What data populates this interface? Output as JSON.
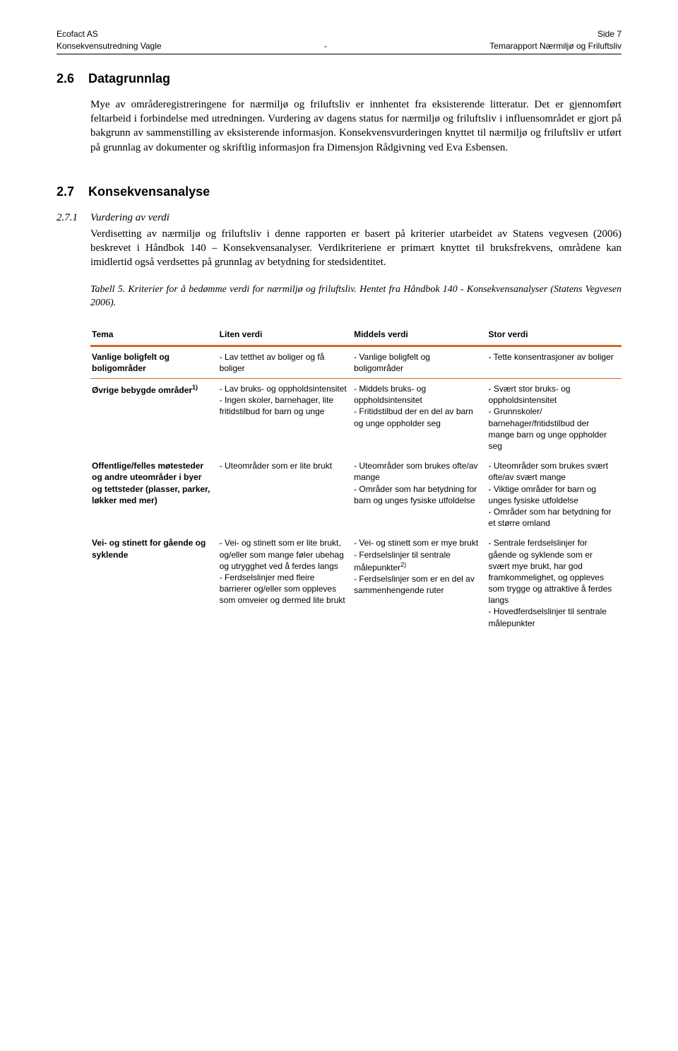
{
  "header": {
    "left1": "Ecofact AS",
    "left2": "Konsekvensutredning Vagle",
    "center": "-",
    "right1": "Side 7",
    "right2": "Temarapport Nærmiljø og Friluftsliv"
  },
  "section26": {
    "num": "2.6",
    "title": "Datagrunnlag",
    "body": "Mye av områderegistreringene for nærmiljø og friluftsliv er innhentet fra eksisterende litteratur. Det er gjennomført feltarbeid i forbindelse med utredningen. Vurdering av dagens status for nærmiljø og friluftsliv i influensområdet er gjort på bakgrunn av sammenstilling av eksisterende informasjon. Konsekvensvurderingen knyttet til nærmiljø og friluftsliv er utført på grunnlag av dokumenter og skriftlig informasjon fra Dimensjon Rådgivning ved Eva Esbensen."
  },
  "section27": {
    "num": "2.7",
    "title": "Konsekvensanalyse",
    "sub_num": "2.7.1",
    "sub_title": "Vurdering av verdi",
    "sub_body": "Verdisetting av nærmiljø og friluftsliv i denne rapporten er basert på kriterier utarbeidet av Statens vegvesen (2006) beskrevet i Håndbok 140 – Konsekvensanalyser. Verdikriteriene er primært knyttet til bruksfrekvens, områdene kan imidlertid også verdsettes på grunnlag av betydning for stedsidentitet."
  },
  "table_caption": "Tabell 5. Kriterier for å bedømme verdi for nærmiljø og friluftsliv. Hentet fra Håndbok 140 - Konsekvensanalyser (Statens Vegvesen 2006).",
  "table": {
    "headers": [
      "Tema",
      "Liten verdi",
      "Middels verdi",
      "Stor verdi"
    ],
    "rows": [
      {
        "tema": "Vanlige boligfelt og boligområder",
        "liten": "- Lav tetthet av boliger og få boliger",
        "middels": "- Vanlige boligfelt og boligområder",
        "stor": "- Tette konsentrasjoner av boliger"
      },
      {
        "tema_html": "Øvrige bebygde områder<sup>1)</sup>",
        "liten": "- Lav bruks- og oppholdsintensitet\n- Ingen skoler, barnehager, lite fritidstilbud for barn og unge",
        "middels": "- Middels bruks- og oppholdsintensitet\n- Fritidstilbud der en del av barn og unge oppholder seg",
        "stor": "- Svært stor bruks- og oppholdsintensitet\n- Grunnskoler/ barnehager/fritidstilbud der mange barn og unge oppholder seg"
      },
      {
        "tema": "Offentlige/felles møtesteder og andre uteområder i byer og tettsteder (plasser, parker, løkker med mer)",
        "liten": "- Uteområder som er lite brukt",
        "middels": "- Uteområder som brukes ofte/av mange\n- Områder som har betydning for barn og unges fysiske utfoldelse",
        "stor": "- Uteområder som brukes svært ofte/av svært mange\n- Viktige områder for barn og unges fysiske utfoldelse\n- Områder som har betydning for et større omland"
      },
      {
        "tema": "Vei- og stinett for gående og syklende",
        "liten": "- Vei- og stinett som er lite brukt, og/eller som mange føler ubehag og utrygghet ved å ferdes langs\n- Ferdselslinjer med fleire barrierer og/eller som oppleves som omveier og dermed lite brukt",
        "middels_html": "- Vei- og stinett som er mye brukt\n- Ferdselslinjer til sentrale målepunkter<sup>2)</sup>\n- Ferdselslinjer som er en del av sammenhengende ruter",
        "stor": "- Sentrale ferdselslinjer for gående og syklende som er svært mye brukt, har god framkommelighet, og oppleves som trygge og attraktive å ferdes langs\n- Hovedferdselslinjer til sentrale målepunkter"
      }
    ]
  }
}
